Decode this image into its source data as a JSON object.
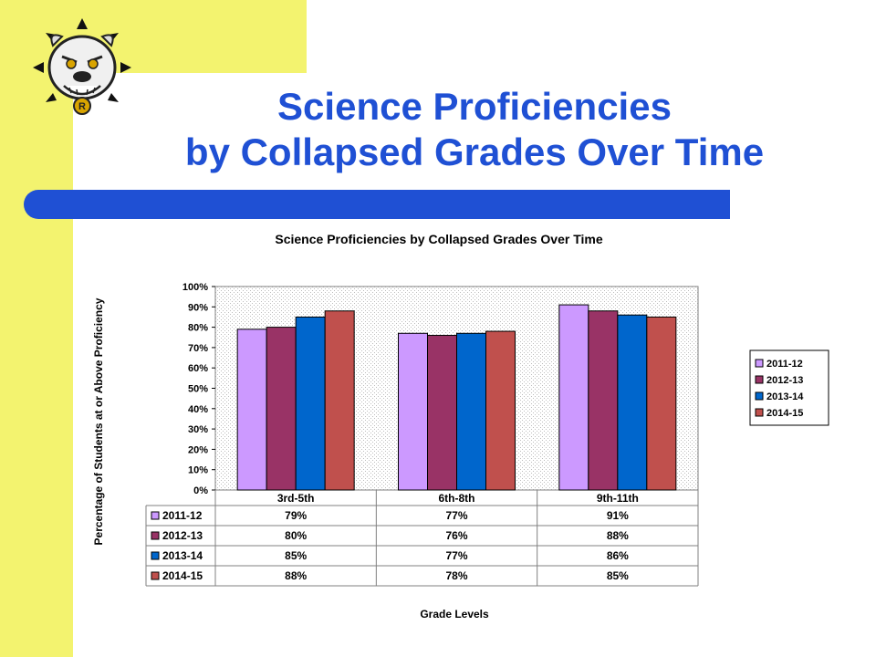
{
  "slide": {
    "title_line1": "Science Proficiencies",
    "title_line2": "by Collapsed Grades Over Time"
  },
  "logo": {
    "icon": "bulldog-mascot-icon",
    "badge_letter": "R"
  },
  "colors": {
    "yellow": "#f3f36f",
    "title_blue": "#1f50d4",
    "bar_blue": "#1f50d4"
  },
  "chart_data": {
    "type": "bar",
    "title": "Science Proficiencies by Collapsed Grades Over Time",
    "xlabel": "Grade Levels",
    "ylabel": "Percentage of Students at or Above Proficiency",
    "ylim": [
      0,
      100
    ],
    "yticks": [
      "0%",
      "10%",
      "20%",
      "30%",
      "40%",
      "50%",
      "60%",
      "70%",
      "80%",
      "90%",
      "100%"
    ],
    "categories": [
      "3rd-5th",
      "6th-8th",
      "9th-11th"
    ],
    "series": [
      {
        "name": "2011-12",
        "color": "#cc99ff",
        "values": [
          79,
          77,
          91
        ],
        "labels": [
          "79%",
          "77%",
          "91%"
        ]
      },
      {
        "name": "2012-13",
        "color": "#993366",
        "values": [
          80,
          76,
          88
        ],
        "labels": [
          "80%",
          "76%",
          "88%"
        ]
      },
      {
        "name": "2013-14",
        "color": "#0066cc",
        "values": [
          85,
          77,
          86
        ],
        "labels": [
          "85%",
          "77%",
          "86%"
        ]
      },
      {
        "name": "2014-15",
        "color": "#c0504d",
        "values": [
          88,
          78,
          85
        ],
        "labels": [
          "88%",
          "78%",
          "85%"
        ]
      }
    ],
    "legend": "right",
    "grid": "dotted background",
    "data_table": true
  }
}
